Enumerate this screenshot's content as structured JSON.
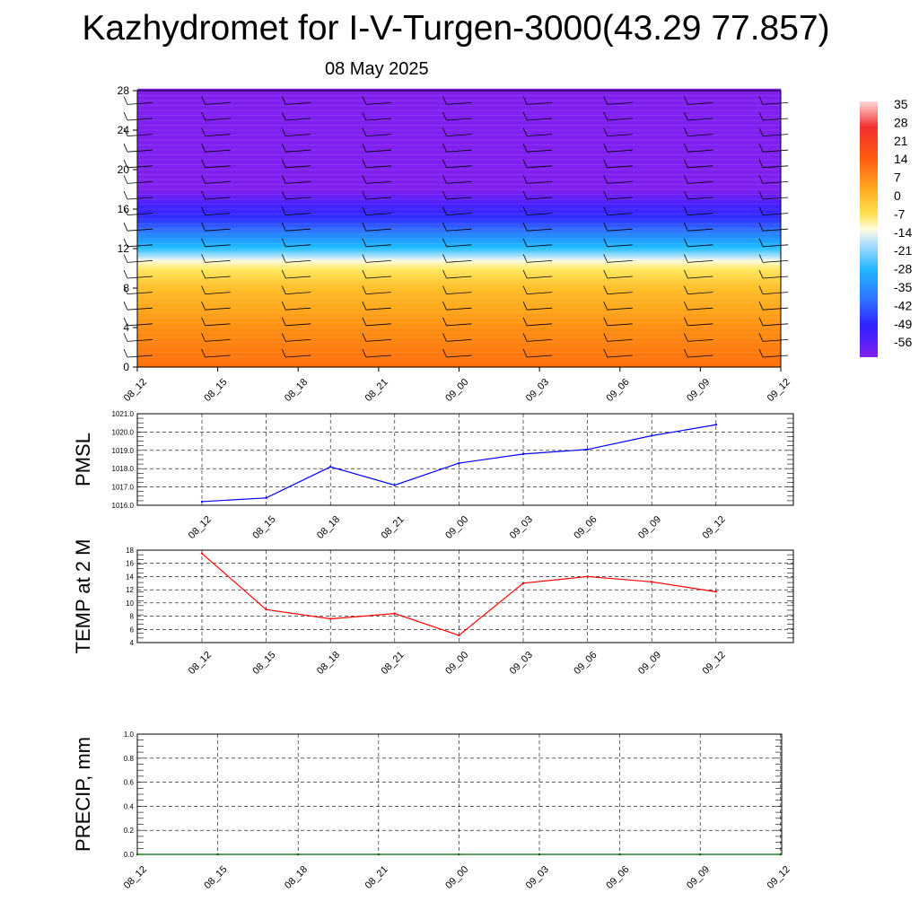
{
  "title": "Kazhydromet for I-V-Turgen-3000(43.29 77.857)",
  "subtitle": "08 May 2025",
  "colorbar": {
    "labels": [
      "35",
      "28",
      "21",
      "14",
      "7",
      "0",
      "-7",
      "-14",
      "-21",
      "-28",
      "-35",
      "-42",
      "-49",
      "-56"
    ]
  },
  "chart_data": [
    {
      "type": "heatmap",
      "title": "",
      "xlabel": "",
      "ylabel": "",
      "x_ticks": [
        "08_12",
        "08_15",
        "08_18",
        "08_21",
        "09_00",
        "09_03",
        "09_06",
        "09_09",
        "09_12"
      ],
      "y_ticks": [
        "0",
        "4",
        "8",
        "12",
        "16",
        "20",
        "24",
        "28"
      ],
      "ylim": [
        0,
        28
      ],
      "color_levels": [
        35,
        28,
        21,
        14,
        7,
        0,
        -7,
        -14,
        -21,
        -28,
        -35,
        -42,
        -49,
        -56
      ],
      "temperature_profile": [
        {
          "height": 0,
          "value": 12
        },
        {
          "height": 4,
          "value": 8
        },
        {
          "height": 8,
          "value": 0
        },
        {
          "height": 10.8,
          "value": -10
        },
        {
          "height": 12,
          "value": -20
        },
        {
          "height": 14,
          "value": -35
        },
        {
          "height": 16,
          "value": -48
        },
        {
          "height": 18,
          "value": -56
        },
        {
          "height": 20,
          "value": -56
        },
        {
          "height": 28,
          "value": -56
        }
      ],
      "wind_barbs": "present",
      "grid": false
    },
    {
      "type": "line",
      "title": "",
      "ylabel": "PMSL",
      "categories": [
        "08_12",
        "08_15",
        "08_18",
        "08_21",
        "09_00",
        "09_03",
        "09_06",
        "09_09",
        "09_12"
      ],
      "series": [
        {
          "values": [
            1016.2,
            1016.4,
            1018.1,
            1017.1,
            1018.3,
            1018.8,
            1019.05,
            1019.8,
            1020.4
          ],
          "color": "#0000ff"
        }
      ],
      "y_ticks": [
        "1016.0",
        "1017.0",
        "1018.0",
        "1019.0",
        "1020.0",
        "1021.0"
      ],
      "ylim": [
        1016,
        1021
      ],
      "grid": true
    },
    {
      "type": "line",
      "title": "",
      "ylabel": "TEMP at 2 M",
      "categories": [
        "08_12",
        "08_15",
        "08_18",
        "08_21",
        "09_00",
        "09_03",
        "09_06",
        "09_09",
        "09_12"
      ],
      "series": [
        {
          "values": [
            17.5,
            9,
            7.6,
            8.4,
            5.1,
            13,
            14,
            13.2,
            11.7
          ],
          "color": "#ff0000"
        }
      ],
      "y_ticks": [
        "4",
        "6",
        "8",
        "10",
        "12",
        "14",
        "16",
        "18"
      ],
      "ylim": [
        4,
        18
      ],
      "grid": true
    },
    {
      "type": "line",
      "title": "",
      "ylabel": "PRECIP, mm",
      "categories": [
        "08_12",
        "08_15",
        "08_18",
        "08_21",
        "09_00",
        "09_03",
        "09_06",
        "09_09",
        "09_12"
      ],
      "series": [
        {
          "values": [
            0,
            0,
            0,
            0,
            0,
            0,
            0,
            0,
            0
          ],
          "color": "#006400"
        }
      ],
      "y_ticks": [
        "0.0",
        "0.2",
        "0.4",
        "0.6",
        "0.8",
        "1.0"
      ],
      "ylim": [
        0,
        1
      ],
      "grid": true
    }
  ]
}
